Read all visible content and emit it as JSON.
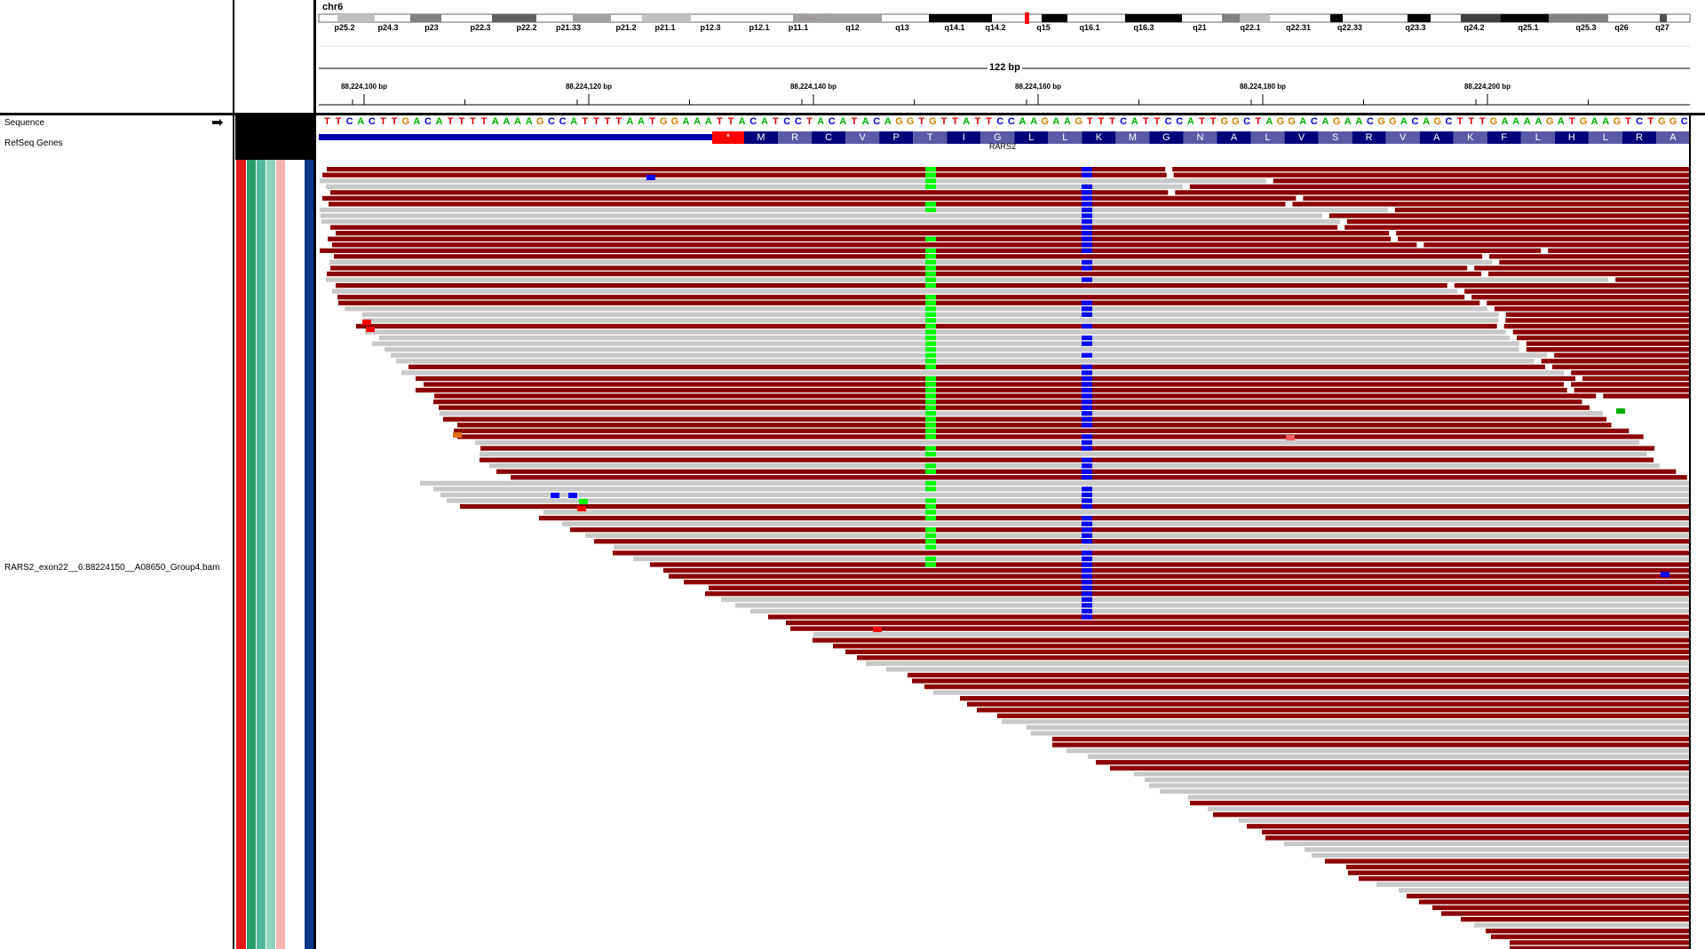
{
  "chromosome": "chr6",
  "cytobands": [
    "p25.2",
    "p24.3",
    "p23",
    "p22.3",
    "p22.2",
    "p21.33",
    "p21.2",
    "p21.1",
    "p12.3",
    "p12.1",
    "p11.1",
    "q12",
    "q13",
    "q14.1",
    "q14.2",
    "q15",
    "q16.1",
    "q16.3",
    "q21",
    "q22.1",
    "q22.31",
    "q22.33",
    "q23.3",
    "q24.2",
    "q25.1",
    "q25.3",
    "q26",
    "q27"
  ],
  "ruler": {
    "span_label": "122 bp",
    "ticks": [
      "88,224,100 bp",
      "88,224,120 bp",
      "88,224,140 bp",
      "88,224,160 bp",
      "88,224,180 bp",
      "88,224,200 bp"
    ]
  },
  "tracks": {
    "sequence_label": "Sequence",
    "sequence_arrow": "➡",
    "genes_label": "RefSeq Genes",
    "bam_label": "RARS2_exon22__6:88224150__A08650_Group4.bam"
  },
  "sequence": "TTCACTTGACATTTTAAAAGCCATTTTAATGGAAATTACATCCTACATACAGGTGTTATTCCAAGAAGTTTCATTCCATTGGCTAGGACAGAACGGACAGCTTTGAAAAGATGAAGTCTGGC",
  "gene": {
    "name": "RARS2",
    "stop_codon": "*",
    "amino_acids": [
      "M",
      "R",
      "C",
      "V",
      "P",
      "T",
      "I",
      "G",
      "L",
      "L",
      "K",
      "M",
      "G",
      "N",
      "A",
      "L",
      "V",
      "S",
      "R",
      "V",
      "A",
      "K",
      "F",
      "L",
      "H",
      "L",
      "R",
      "A"
    ]
  },
  "colors": {
    "A": "#00b000",
    "C": "#0000e0",
    "G": "#d08000",
    "T": "#e00000",
    "read_gray": "#c8c8c8",
    "read_red": "#8b0000",
    "snp_green": "#00ff00",
    "snp_blue": "#0000ff",
    "gene_blue": "#0000a8",
    "aa_dark": "#00007a",
    "aa_light": "#5a5aa8"
  }
}
